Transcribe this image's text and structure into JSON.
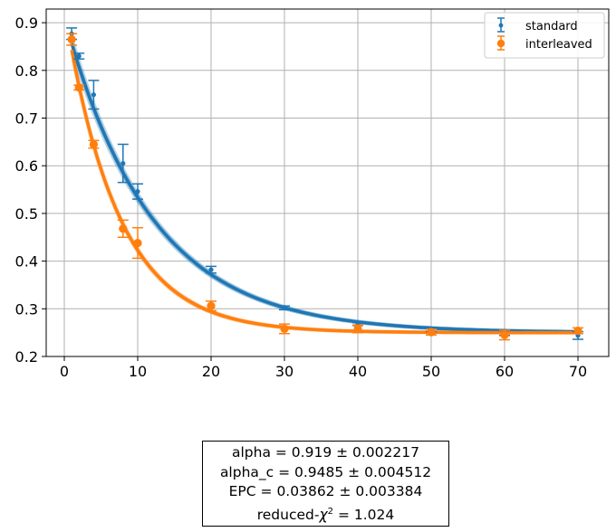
{
  "chart_data": {
    "type": "scatter",
    "title": "",
    "xlabel": "",
    "ylabel": "",
    "xlim": [
      -2.2,
      74.2
    ],
    "ylim": [
      0.2,
      0.93
    ],
    "xticks": [
      0,
      10,
      20,
      30,
      40,
      50,
      60,
      70
    ],
    "yticks": [
      0.2,
      0.3,
      0.4,
      0.5,
      0.6,
      0.7,
      0.8,
      0.9
    ],
    "grid": true,
    "legend_position": "upper right",
    "series": [
      {
        "name": "standard",
        "color": "#1f77b4",
        "marker": "small-dot",
        "x": [
          1,
          2,
          4,
          8,
          10,
          20,
          30,
          40,
          50,
          60,
          70
        ],
        "y": [
          0.877,
          0.83,
          0.749,
          0.605,
          0.546,
          0.382,
          0.302,
          0.268,
          0.255,
          0.249,
          0.244
        ],
        "err": [
          0.012,
          0.006,
          0.03,
          0.04,
          0.016,
          0.007,
          0.004,
          0.003,
          0.003,
          0.005,
          0.008
        ],
        "fit": {
          "A": 0.66,
          "alpha": 0.919,
          "B": 0.25
        }
      },
      {
        "name": "interleaved",
        "color": "#ff7f0e",
        "marker": "circle",
        "x": [
          1,
          2,
          4,
          8,
          10,
          20,
          30,
          40,
          50,
          60,
          70
        ],
        "y": [
          0.865,
          0.764,
          0.645,
          0.468,
          0.438,
          0.306,
          0.258,
          0.258,
          0.251,
          0.245,
          0.254
        ],
        "err": [
          0.012,
          0.005,
          0.008,
          0.018,
          0.032,
          0.01,
          0.01,
          0.008,
          0.006,
          0.01,
          0.006
        ],
        "fit": {
          "A": 0.68,
          "alpha": 0.872,
          "B": 0.25
        }
      }
    ],
    "annotation_lines": [
      "alpha =   0.919 ±  0.002217",
      "alpha_c =   0.9485 ±  0.004512",
      "EPC =   0.03862 ±  0.003384",
      "reduced-χ² =  1.024"
    ]
  },
  "legend": {
    "items": [
      {
        "label": "standard"
      },
      {
        "label": "interleaved"
      }
    ]
  },
  "stats": {
    "alpha": "alpha =   0.919 ±  0.002217",
    "alpha_c": "alpha_c =   0.9485 ±  0.004512",
    "epc": "EPC =   0.03862 ±  0.003384",
    "chi_prefix": "reduced-",
    "chi_symbol": "χ",
    "chi_sup": "2",
    "chi_value": " =  1.024"
  }
}
